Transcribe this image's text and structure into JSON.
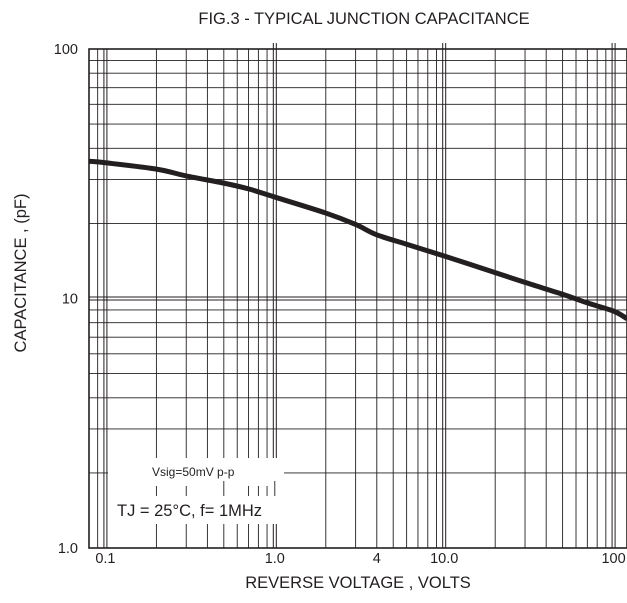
{
  "chart_data": {
    "type": "line",
    "title": "FIG.3 - TYPICAL JUNCTION CAPACITANCE",
    "xlabel": "REVERSE VOLTAGE , VOLTS",
    "ylabel": "CAPACITANCE , (pF)",
    "xscale": "log",
    "yscale": "log",
    "xlim": [
      0.08,
      120
    ],
    "ylim": [
      1,
      100
    ],
    "grid": true,
    "x_ticks": [
      {
        "value": 0.1,
        "label": "0.1"
      },
      {
        "value": 1,
        "label": "1.0"
      },
      {
        "value": 4,
        "label": "4"
      },
      {
        "value": 10,
        "label": "10.0"
      },
      {
        "value": 100,
        "label": "100"
      }
    ],
    "y_ticks": [
      {
        "value": 1,
        "label": "1.0"
      },
      {
        "value": 10,
        "label": "10"
      },
      {
        "value": 100,
        "label": "100"
      }
    ],
    "series": [
      {
        "color": "#231f20",
        "x": [
          0.08,
          0.1,
          0.2,
          0.3,
          0.5,
          0.7,
          1,
          2,
          3,
          4,
          6,
          10,
          20,
          30,
          50,
          70,
          100,
          120
        ],
        "y": [
          35.5,
          35,
          33,
          31,
          29,
          27.5,
          25.5,
          22,
          19.8,
          18,
          16.5,
          14.8,
          12.7,
          11.6,
          10.4,
          9.6,
          8.9,
          8.3
        ]
      }
    ],
    "annotations": [
      {
        "text": "Vsig=50mV p-p"
      },
      {
        "text": "TJ = 25°C,  f= 1MHz"
      }
    ]
  }
}
